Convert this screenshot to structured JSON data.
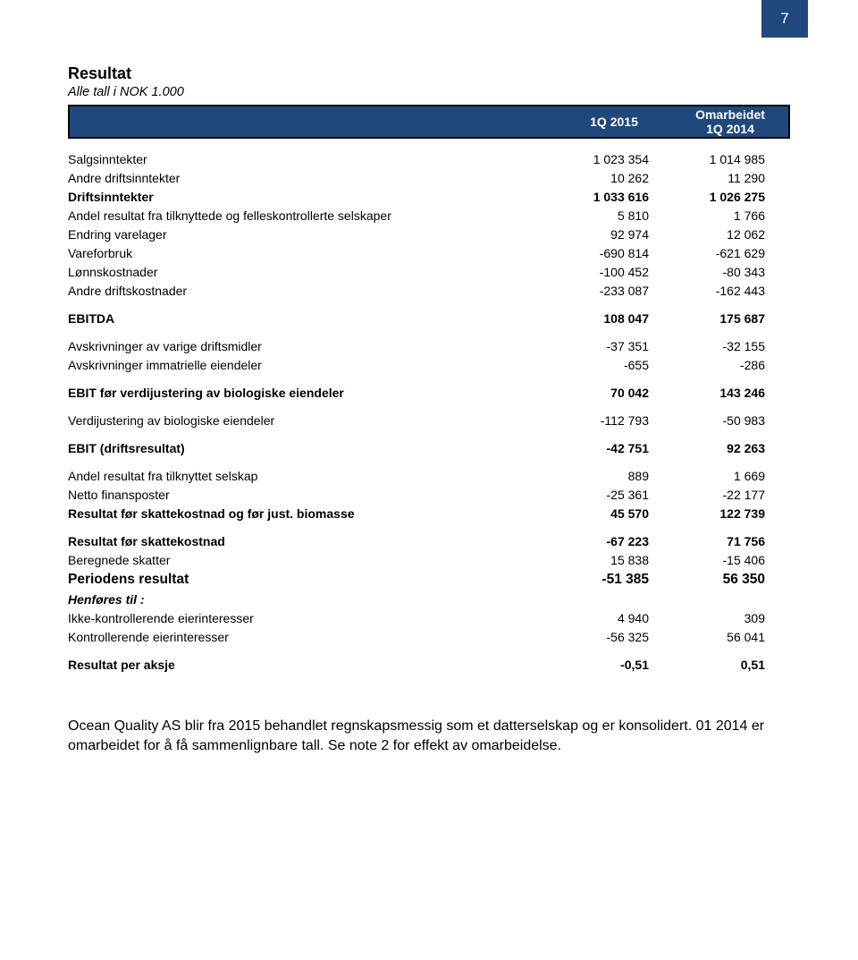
{
  "page_number": "7",
  "colors": {
    "brand_blue": "#1f497d",
    "text": "#000000",
    "bg": "#ffffff"
  },
  "title": "Resultat",
  "subtitle": "Alle tall i NOK 1.000",
  "header": {
    "col1": "1Q 2015",
    "col2_top": "Omarbeidet",
    "col2_bottom": "1Q 2014"
  },
  "rows": [
    {
      "label": "Salgsinntekter",
      "v1": "1 023 354",
      "v2": "1 014 985",
      "style": ""
    },
    {
      "label": "Andre driftsinntekter",
      "v1": "10 262",
      "v2": "11 290",
      "style": ""
    },
    {
      "label": "Driftsinntekter",
      "v1": "1 033 616",
      "v2": "1 026 275",
      "style": "bold"
    },
    {
      "label": "Andel resultat fra tilknyttede og felleskontrollerte selskaper",
      "v1": "5 810",
      "v2": "1 766",
      "style": ""
    },
    {
      "label": "Endring varelager",
      "v1": "92 974",
      "v2": "12 062",
      "style": ""
    },
    {
      "label": "Vareforbruk",
      "v1": "-690 814",
      "v2": "-621 629",
      "style": ""
    },
    {
      "label": "Lønnskostnader",
      "v1": "-100 452",
      "v2": "-80 343",
      "style": ""
    },
    {
      "label": "Andre driftskostnader",
      "v1": "-233 087",
      "v2": "-162 443",
      "style": ""
    },
    {
      "style": "spacer"
    },
    {
      "label": "EBITDA",
      "v1": "108 047",
      "v2": "175 687",
      "style": "bold"
    },
    {
      "style": "spacer"
    },
    {
      "label": "Avskrivninger av varige driftsmidler",
      "v1": "-37 351",
      "v2": "-32 155",
      "style": ""
    },
    {
      "label": "Avskrivninger immatrielle eiendeler",
      "v1": "-655",
      "v2": "-286",
      "style": ""
    },
    {
      "style": "spacer"
    },
    {
      "label": "EBIT før verdijustering av biologiske eiendeler",
      "v1": "70 042",
      "v2": "143 246",
      "style": "bold"
    },
    {
      "style": "spacer"
    },
    {
      "label": "Verdijustering av biologiske eiendeler",
      "v1": "-112 793",
      "v2": "-50 983",
      "style": ""
    },
    {
      "style": "spacer"
    },
    {
      "label": "EBIT (driftsresultat)",
      "v1": "-42 751",
      "v2": "92 263",
      "style": "bold"
    },
    {
      "style": "spacer"
    },
    {
      "label": "Andel resultat fra tilknyttet selskap",
      "v1": "889",
      "v2": "1 669",
      "style": ""
    },
    {
      "label": "Netto finansposter",
      "v1": "-25 361",
      "v2": "-22 177",
      "style": ""
    },
    {
      "label": "Resultat før skattekostnad og før just. biomasse",
      "v1": "45 570",
      "v2": "122 739",
      "style": "bold"
    },
    {
      "style": "spacer"
    },
    {
      "label": "Resultat før skattekostnad",
      "v1": "-67 223",
      "v2": "71 756",
      "style": "bold"
    },
    {
      "label": "Beregnede skatter",
      "v1": "15 838",
      "v2": "-15 406",
      "style": ""
    },
    {
      "label": "Periodens resultat",
      "v1": "-51 385",
      "v2": "56 350",
      "style": "big"
    },
    {
      "label": "Henføres til :",
      "v1": "",
      "v2": "",
      "style": "italic"
    },
    {
      "label": "Ikke-kontrollerende eierinteresser",
      "v1": "4 940",
      "v2": "309",
      "style": ""
    },
    {
      "label": "Kontrollerende eierinteresser",
      "v1": "-56 325",
      "v2": "56 041",
      "style": ""
    },
    {
      "style": "spacer"
    },
    {
      "label": "Resultat per aksje",
      "v1": "-0,51",
      "v2": "0,51",
      "style": "bold"
    }
  ],
  "footnote": "Ocean Quality AS blir fra 2015 behandlet regnskapsmessig som et datterselskap og er konsolidert. 01 2014 er omarbeidet for å få sammenlignbare tall. Se note 2 for effekt av omarbeidelse."
}
